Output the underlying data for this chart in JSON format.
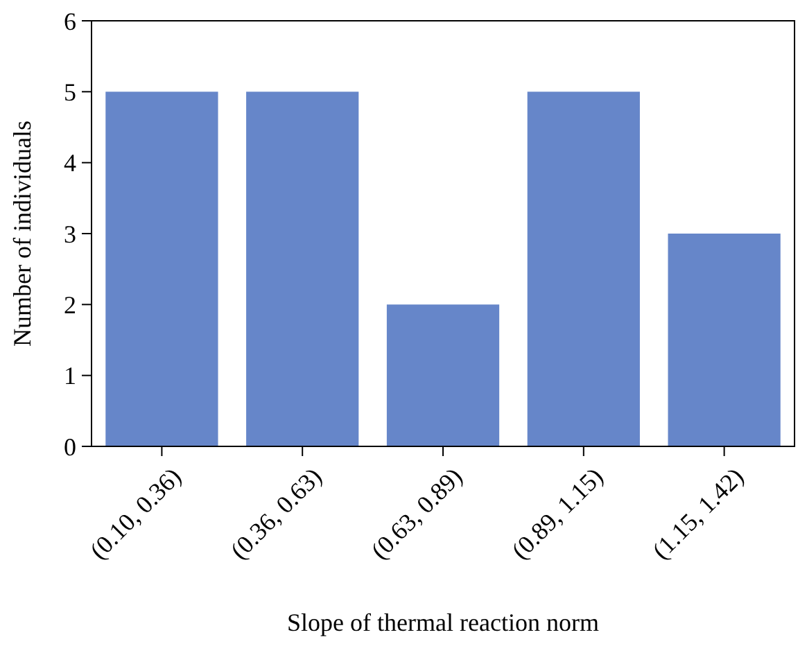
{
  "chart_data": {
    "type": "bar",
    "xlabel": "Slope of thermal reaction norm",
    "ylabel": "Number of individuals",
    "categories": [
      "(0.10, 0.36)",
      "(0.36, 0.63)",
      "(0.63, 0.89)",
      "(0.89, 1.15)",
      "(1.15, 1.42)"
    ],
    "values": [
      5,
      5,
      2,
      5,
      3
    ],
    "color": "#6686c9",
    "ylim": [
      0,
      6
    ],
    "yticks": [
      0,
      1,
      2,
      3,
      4,
      5,
      6
    ],
    "grid": false
  }
}
